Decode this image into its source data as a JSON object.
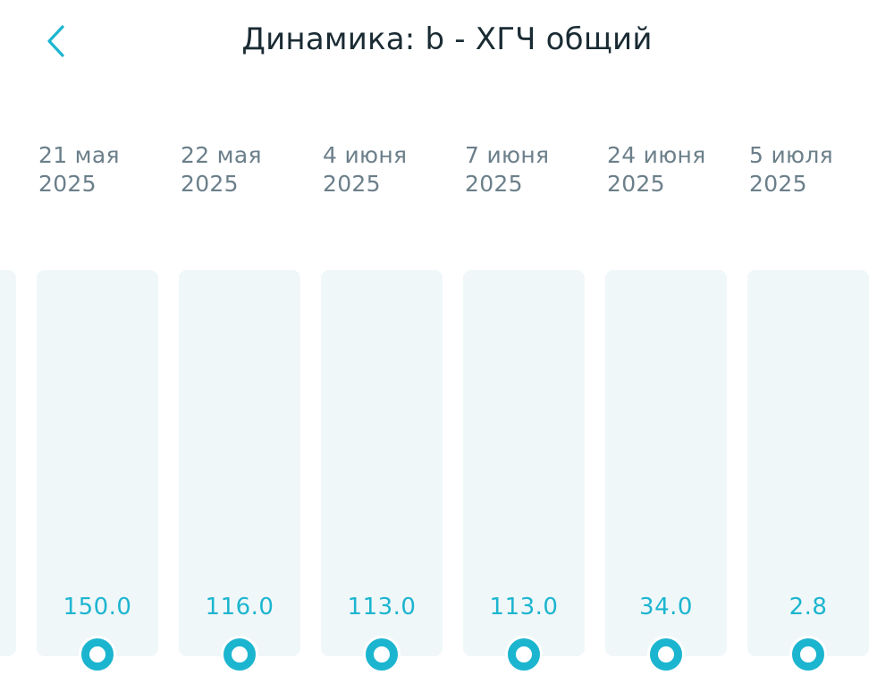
{
  "header": {
    "title": "Динамика: b - ХГЧ общий",
    "back_icon": "chevron-left-icon"
  },
  "colors": {
    "accent": "#1cb5cf",
    "bar_background": "#f0f7f9",
    "date_text": "#6b7f8a",
    "title_text": "#1a2b33"
  },
  "timeline": {
    "columns": [
      {
        "date_line1": "21 мая",
        "date_line2": "2025",
        "value": "150.0"
      },
      {
        "date_line1": "22 мая",
        "date_line2": "2025",
        "value": "116.0"
      },
      {
        "date_line1": "4 июня",
        "date_line2": "2025",
        "value": "113.0"
      },
      {
        "date_line1": "7 июня",
        "date_line2": "2025",
        "value": "113.0"
      },
      {
        "date_line1": "24 июня",
        "date_line2": "2025",
        "value": "34.0"
      },
      {
        "date_line1": "5 июля",
        "date_line2": "2025",
        "value": "2.8"
      }
    ]
  }
}
